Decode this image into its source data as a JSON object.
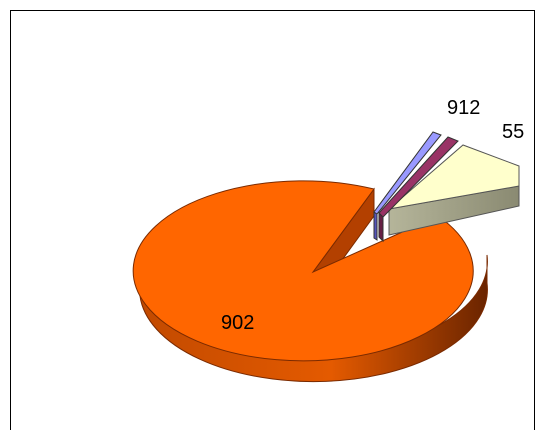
{
  "chart_data": {
    "type": "pie",
    "style": "3d-exploded",
    "slices": [
      {
        "value": 902,
        "label": "902",
        "color": "#ff6600",
        "side_color": "#c44400"
      },
      {
        "value": 55,
        "label": "55",
        "color": "#ffffcc",
        "side_color": "#999977"
      },
      {
        "value": 9,
        "label": "9",
        "color": "#993366",
        "side_color": "#661f44"
      },
      {
        "value": 12,
        "label": "12",
        "color": "#9999ff",
        "side_color": "#5555bb"
      }
    ],
    "combined_label": "912"
  }
}
